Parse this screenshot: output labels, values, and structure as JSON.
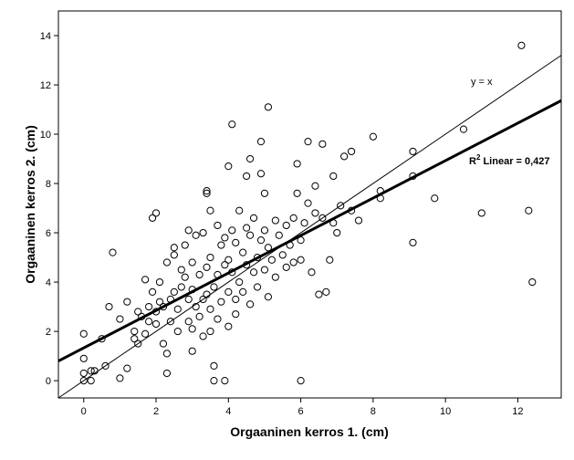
{
  "chart_data": {
    "type": "scatter",
    "xlabel": "Orgaaninen kerros 1. (cm)",
    "ylabel": "Orgaaninen kerros 2. (cm)",
    "xlim": [
      -0.7,
      13.2
    ],
    "ylim": [
      -0.7,
      15.0
    ],
    "x_ticks": [
      0,
      2,
      4,
      6,
      8,
      10,
      12
    ],
    "y_ticks": [
      0,
      2,
      4,
      6,
      8,
      10,
      12,
      14
    ],
    "grid": false,
    "identity_line_label": "y = x",
    "fit_line": {
      "label_prefix": "R",
      "label_sup": "2",
      "label_suffix": " Linear = 0,427",
      "intercept": 1.33,
      "slope": 0.76
    },
    "points": [
      [
        0,
        0
      ],
      [
        0,
        0.3
      ],
      [
        0,
        0.9
      ],
      [
        0,
        1.9
      ],
      [
        0.2,
        0
      ],
      [
        0.2,
        0.4
      ],
      [
        0.3,
        0.4
      ],
      [
        0.5,
        1.7
      ],
      [
        0.6,
        0.6
      ],
      [
        0.8,
        5.2
      ],
      [
        0.7,
        3.0
      ],
      [
        1.0,
        2.5
      ],
      [
        1.0,
        0.1
      ],
      [
        1.2,
        0.5
      ],
      [
        1.2,
        3.2
      ],
      [
        1.4,
        1.7
      ],
      [
        1.4,
        2.0
      ],
      [
        1.5,
        1.5
      ],
      [
        1.5,
        2.8
      ],
      [
        1.6,
        2.6
      ],
      [
        1.7,
        4.1
      ],
      [
        1.7,
        1.9
      ],
      [
        1.8,
        2.4
      ],
      [
        1.8,
        3.0
      ],
      [
        1.9,
        6.6
      ],
      [
        1.9,
        3.6
      ],
      [
        2.0,
        6.8
      ],
      [
        2.0,
        2.3
      ],
      [
        2.0,
        2.8
      ],
      [
        2.1,
        3.2
      ],
      [
        2.1,
        4.0
      ],
      [
        2.2,
        1.5
      ],
      [
        2.2,
        3.0
      ],
      [
        2.3,
        4.8
      ],
      [
        2.3,
        1.1
      ],
      [
        2.3,
        0.3
      ],
      [
        2.4,
        2.4
      ],
      [
        2.4,
        3.3
      ],
      [
        2.5,
        5.4
      ],
      [
        2.5,
        5.1
      ],
      [
        2.5,
        3.6
      ],
      [
        2.6,
        2.0
      ],
      [
        2.6,
        2.9
      ],
      [
        2.7,
        3.8
      ],
      [
        2.7,
        4.5
      ],
      [
        2.8,
        4.2
      ],
      [
        2.8,
        5.5
      ],
      [
        2.9,
        2.4
      ],
      [
        2.9,
        6.1
      ],
      [
        2.9,
        3.3
      ],
      [
        3.0,
        4.8
      ],
      [
        3.0,
        2.1
      ],
      [
        3.0,
        3.7
      ],
      [
        3.0,
        1.2
      ],
      [
        3.1,
        3.0
      ],
      [
        3.1,
        5.9
      ],
      [
        3.2,
        4.3
      ],
      [
        3.2,
        2.6
      ],
      [
        3.3,
        3.3
      ],
      [
        3.3,
        1.8
      ],
      [
        3.3,
        6.0
      ],
      [
        3.4,
        4.6
      ],
      [
        3.4,
        3.5
      ],
      [
        3.4,
        7.7
      ],
      [
        3.4,
        7.6
      ],
      [
        3.5,
        5.0
      ],
      [
        3.5,
        2.9
      ],
      [
        3.5,
        2.0
      ],
      [
        3.5,
        6.9
      ],
      [
        3.6,
        3.8
      ],
      [
        3.6,
        0.6
      ],
      [
        3.6,
        0
      ],
      [
        3.7,
        4.3
      ],
      [
        3.7,
        2.5
      ],
      [
        3.7,
        6.3
      ],
      [
        3.8,
        5.5
      ],
      [
        3.8,
        3.2
      ],
      [
        3.9,
        4.7
      ],
      [
        3.9,
        5.8
      ],
      [
        3.9,
        0
      ],
      [
        4.0,
        3.6
      ],
      [
        4.0,
        4.9
      ],
      [
        4.0,
        2.2
      ],
      [
        4.0,
        8.7
      ],
      [
        4.1,
        10.4
      ],
      [
        4.1,
        6.1
      ],
      [
        4.1,
        4.4
      ],
      [
        4.2,
        2.7
      ],
      [
        4.2,
        5.6
      ],
      [
        4.2,
        3.3
      ],
      [
        4.3,
        6.9
      ],
      [
        4.3,
        4.0
      ],
      [
        4.4,
        5.2
      ],
      [
        4.4,
        3.6
      ],
      [
        4.5,
        6.2
      ],
      [
        4.5,
        8.3
      ],
      [
        4.5,
        4.7
      ],
      [
        4.6,
        3.1
      ],
      [
        4.6,
        5.9
      ],
      [
        4.6,
        9.0
      ],
      [
        4.7,
        4.4
      ],
      [
        4.7,
        6.6
      ],
      [
        4.8,
        5.0
      ],
      [
        4.8,
        3.8
      ],
      [
        4.9,
        5.7
      ],
      [
        4.9,
        9.7
      ],
      [
        4.9,
        8.4
      ],
      [
        5.0,
        4.5
      ],
      [
        5.0,
        6.1
      ],
      [
        5.0,
        7.6
      ],
      [
        5.1,
        11.1
      ],
      [
        5.1,
        5.4
      ],
      [
        5.1,
        3.4
      ],
      [
        5.2,
        4.9
      ],
      [
        5.3,
        6.5
      ],
      [
        5.3,
        4.2
      ],
      [
        5.4,
        5.9
      ],
      [
        5.5,
        5.1
      ],
      [
        5.6,
        6.3
      ],
      [
        5.6,
        4.6
      ],
      [
        5.7,
        5.5
      ],
      [
        5.8,
        6.6
      ],
      [
        5.8,
        4.8
      ],
      [
        5.9,
        7.6
      ],
      [
        5.9,
        8.8
      ],
      [
        6.0,
        5.7
      ],
      [
        6.0,
        4.9
      ],
      [
        6.0,
        0
      ],
      [
        6.1,
        6.4
      ],
      [
        6.2,
        9.7
      ],
      [
        6.2,
        7.2
      ],
      [
        6.3,
        4.4
      ],
      [
        6.4,
        6.8
      ],
      [
        6.4,
        7.9
      ],
      [
        6.5,
        3.5
      ],
      [
        6.6,
        9.6
      ],
      [
        6.6,
        6.6
      ],
      [
        6.7,
        3.6
      ],
      [
        6.8,
        4.9
      ],
      [
        6.9,
        8.3
      ],
      [
        6.9,
        6.4
      ],
      [
        7.0,
        6.0
      ],
      [
        7.1,
        7.1
      ],
      [
        7.2,
        9.1
      ],
      [
        7.4,
        9.3
      ],
      [
        7.4,
        6.9
      ],
      [
        7.6,
        6.5
      ],
      [
        8.0,
        9.9
      ],
      [
        8.2,
        7.7
      ],
      [
        8.2,
        7.4
      ],
      [
        9.1,
        9.3
      ],
      [
        9.1,
        8.3
      ],
      [
        9.1,
        5.6
      ],
      [
        9.7,
        7.4
      ],
      [
        10.5,
        10.2
      ],
      [
        11.0,
        6.8
      ],
      [
        12.1,
        13.6
      ],
      [
        12.3,
        6.9
      ],
      [
        12.4,
        4.0
      ]
    ]
  }
}
